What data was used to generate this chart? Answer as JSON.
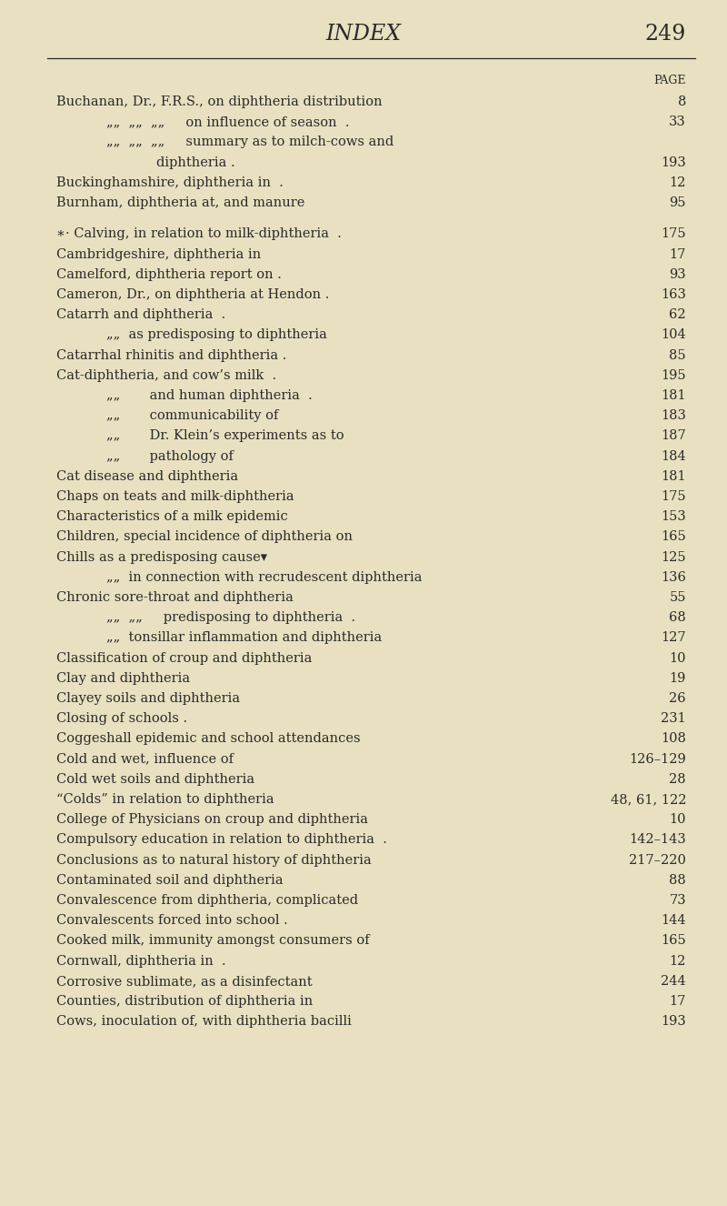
{
  "bg_color": "#e8e0c0",
  "page_title": "INDEX",
  "page_number": "249",
  "header_label": "PAGE",
  "title_font_size": 17,
  "page_num_font_size": 17,
  "header_label_font_size": 9,
  "body_font_size": 10.5,
  "entries": [
    {
      "indent": 0,
      "text": "Buchanan, Dr., F.R.S., on diphtheria distribution",
      "page": "8"
    },
    {
      "indent": 1,
      "text": "„„  „„  „„     on influence of season  .",
      "page": "33"
    },
    {
      "indent": 1,
      "text": "„„  „„  „„     summary as to milch-cows and",
      "page": ""
    },
    {
      "indent": 2,
      "text": "diphtheria .",
      "page": "193"
    },
    {
      "indent": 0,
      "text": "Buckinghamshire, diphtheria in  .",
      "page": "12"
    },
    {
      "indent": 0,
      "text": "Burnham, diphtheria at, and manure",
      "page": "95"
    },
    {
      "indent": -1,
      "text": "",
      "page": ""
    },
    {
      "indent": 0,
      "text": "∗· Calving, in relation to milk-diphtheria  .",
      "page": "175"
    },
    {
      "indent": 0,
      "text": "Cambridgeshire, diphtheria in",
      "page": "17"
    },
    {
      "indent": 0,
      "text": "Camelford, diphtheria report on .",
      "page": "93"
    },
    {
      "indent": 0,
      "text": "Cameron, Dr., on diphtheria at Hendon .",
      "page": "163"
    },
    {
      "indent": 0,
      "text": "Catarrh and diphtheria  .",
      "page": "62"
    },
    {
      "indent": 1,
      "text": "„„  as predisposing to diphtheria",
      "page": "104"
    },
    {
      "indent": 0,
      "text": "Catarrhal rhinitis and diphtheria .",
      "page": "85"
    },
    {
      "indent": 0,
      "text": "Cat-diphtheria, and cow’s milk  .",
      "page": "195"
    },
    {
      "indent": 1,
      "text": "„„       and human diphtheria  .",
      "page": "181"
    },
    {
      "indent": 1,
      "text": "„„       communicability of",
      "page": "183"
    },
    {
      "indent": 1,
      "text": "„„       Dr. Klein’s experiments as to",
      "page": "187"
    },
    {
      "indent": 1,
      "text": "„„       pathology of",
      "page": "184"
    },
    {
      "indent": 0,
      "text": "Cat disease and diphtheria",
      "page": "181"
    },
    {
      "indent": 0,
      "text": "Chaps on teats and milk-diphtheria",
      "page": "175"
    },
    {
      "indent": 0,
      "text": "Characteristics of a milk epidemic",
      "page": "153"
    },
    {
      "indent": 0,
      "text": "Children, special incidence of diphtheria on",
      "page": "165"
    },
    {
      "indent": 0,
      "text": "Chills as a predisposing cause▾",
      "page": "125"
    },
    {
      "indent": 1,
      "text": "„„  in connection with recrudescent diphtheria",
      "page": "136"
    },
    {
      "indent": 0,
      "text": "Chronic sore-throat and diphtheria",
      "page": "55"
    },
    {
      "indent": 1,
      "text": "„„  „„     predisposing to diphtheria  .",
      "page": "68"
    },
    {
      "indent": 1,
      "text": "„„  tonsillar inflammation and diphtheria",
      "page": "127"
    },
    {
      "indent": 0,
      "text": "Classification of croup and diphtheria",
      "page": "10"
    },
    {
      "indent": 0,
      "text": "Clay and diphtheria",
      "page": "19"
    },
    {
      "indent": 0,
      "text": "Clayey soils and diphtheria",
      "page": "26"
    },
    {
      "indent": 0,
      "text": "Closing of schools .",
      "page": "231"
    },
    {
      "indent": 0,
      "text": "Coggeshall epidemic and school attendances",
      "page": "108"
    },
    {
      "indent": 0,
      "text": "Cold and wet, influence of",
      "page": "126–129"
    },
    {
      "indent": 0,
      "text": "Cold wet soils and diphtheria",
      "page": "28"
    },
    {
      "indent": 0,
      "text": "“Colds” in relation to diphtheria",
      "page": "48, 61, 122"
    },
    {
      "indent": 0,
      "text": "College of Physicians on croup and diphtheria",
      "page": "10"
    },
    {
      "indent": 0,
      "text": "Compulsory education in relation to diphtheria  .",
      "page": "142–143"
    },
    {
      "indent": 0,
      "text": "Conclusions as to natural history of diphtheria",
      "page": "217–220"
    },
    {
      "indent": 0,
      "text": "Contaminated soil and diphtheria",
      "page": "88"
    },
    {
      "indent": 0,
      "text": "Convalescence from diphtheria, complicated",
      "page": "73"
    },
    {
      "indent": 0,
      "text": "Convalescents forced into school .",
      "page": "144"
    },
    {
      "indent": 0,
      "text": "Cooked milk, immunity amongst consumers of",
      "page": "165"
    },
    {
      "indent": 0,
      "text": "Cornwall, diphtheria in  .",
      "page": "12"
    },
    {
      "indent": 0,
      "text": "Corrosive sublimate, as a disinfectant",
      "page": "244"
    },
    {
      "indent": 0,
      "text": "Counties, distribution of diphtheria in",
      "page": "17"
    },
    {
      "indent": 0,
      "text": "Cows, inoculation of, with diphtheria bacilli",
      "page": "193"
    }
  ]
}
